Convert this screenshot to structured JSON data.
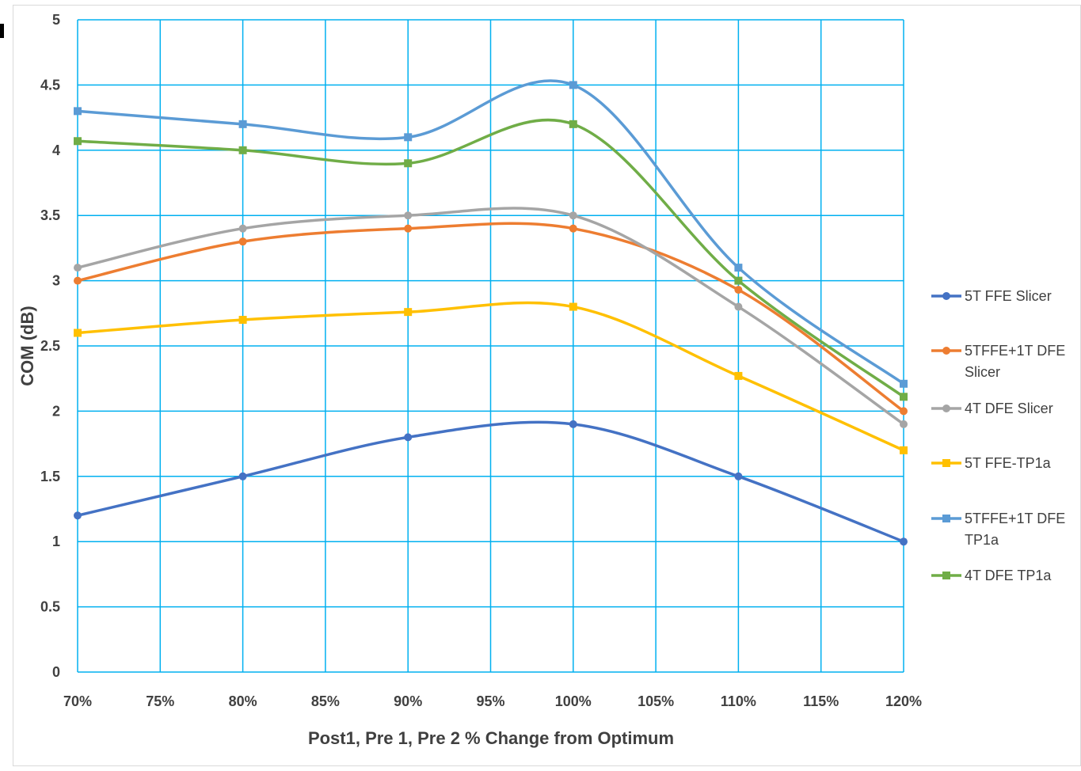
{
  "chart_data": {
    "type": "line",
    "title": "",
    "xlabel": "Post1, Pre 1, Pre 2 % Change from Optimum",
    "ylabel": "COM (dB)",
    "xlim": [
      70,
      120
    ],
    "ylim": [
      0,
      5
    ],
    "x_ticks": [
      "70%",
      "75%",
      "80%",
      "85%",
      "90%",
      "95%",
      "100%",
      "105%",
      "110%",
      "115%",
      "120%"
    ],
    "y_ticks": [
      "0",
      "0.5",
      "1",
      "1.5",
      "2",
      "2.5",
      "3",
      "3.5",
      "4",
      "4.5",
      "5"
    ],
    "x": [
      70,
      80,
      90,
      100,
      110,
      120
    ],
    "grid": true,
    "smooth": true,
    "legend_position": "right",
    "series": [
      {
        "name": "5T FFE Slicer",
        "color": "#4472c4",
        "marker": "circle",
        "values": [
          1.2,
          1.5,
          1.8,
          1.9,
          1.5,
          1.0
        ]
      },
      {
        "name": "5TFFE+1T DFE Slicer",
        "color": "#ed7d31",
        "marker": "circle",
        "values": [
          3.0,
          3.3,
          3.4,
          3.4,
          2.93,
          2.0
        ]
      },
      {
        "name": "4T DFE Slicer",
        "color": "#a5a5a5",
        "marker": "circle",
        "values": [
          3.1,
          3.4,
          3.5,
          3.5,
          2.8,
          1.9
        ]
      },
      {
        "name": "5T FFE-TP1a",
        "color": "#ffc000",
        "marker": "square",
        "values": [
          2.6,
          2.7,
          2.76,
          2.8,
          2.27,
          1.7
        ]
      },
      {
        "name": "5TFFE+1T DFE TP1a",
        "color": "#5b9bd5",
        "marker": "square",
        "values": [
          4.3,
          4.2,
          4.1,
          4.5,
          3.1,
          2.21
        ]
      },
      {
        "name": "4T DFE TP1a",
        "color": "#70ad47",
        "marker": "square",
        "values": [
          4.07,
          4.0,
          3.9,
          4.2,
          3.0,
          2.11
        ]
      }
    ],
    "grid_color": "#00b0f0"
  }
}
